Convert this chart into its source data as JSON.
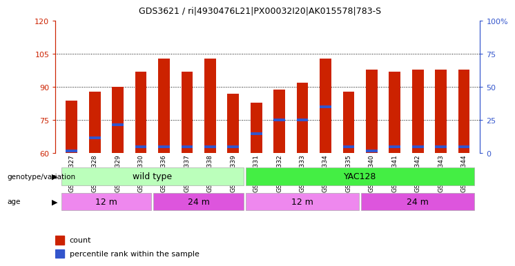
{
  "title": "GDS3621 / ri|4930476L21|PX00032I20|AK015578|783-S",
  "samples": [
    "GSM491327",
    "GSM491328",
    "GSM491329",
    "GSM491330",
    "GSM491336",
    "GSM491337",
    "GSM491338",
    "GSM491339",
    "GSM491331",
    "GSM491332",
    "GSM491333",
    "GSM491334",
    "GSM491335",
    "GSM491340",
    "GSM491341",
    "GSM491342",
    "GSM491343",
    "GSM491344"
  ],
  "counts": [
    84,
    88,
    90,
    97,
    103,
    97,
    103,
    87,
    83,
    89,
    92,
    103,
    88,
    98,
    97,
    98,
    98,
    98
  ],
  "percentile_values": [
    61,
    67,
    73,
    63,
    63,
    63,
    63,
    63,
    69,
    75,
    75,
    81,
    63,
    61,
    63,
    63,
    63,
    63
  ],
  "ymin": 60,
  "ymax": 120,
  "yticks_left": [
    60,
    75,
    90,
    105,
    120
  ],
  "yticks_right": [
    0,
    25,
    50,
    75,
    100
  ],
  "bar_color": "#cc2200",
  "percentile_color": "#3355cc",
  "bar_width": 0.5,
  "genotype_labels": [
    "wild type",
    "YAC128"
  ],
  "genotype_colors": [
    "#bbffbb",
    "#44ee44"
  ],
  "genotype_ranges": [
    [
      0,
      8
    ],
    [
      8,
      18
    ]
  ],
  "age_labels": [
    "12 m",
    "24 m",
    "12 m",
    "24 m"
  ],
  "age_colors": [
    "#ee88ee",
    "#dd55dd",
    "#ee88ee",
    "#dd55dd"
  ],
  "age_ranges": [
    [
      0,
      4
    ],
    [
      4,
      8
    ],
    [
      8,
      13
    ],
    [
      13,
      18
    ]
  ],
  "background_color": "#ffffff",
  "plot_bg_color": "#ffffff",
  "grid_color": "#000000",
  "n_samples": 18,
  "dotted_lines": [
    75,
    90,
    105
  ]
}
